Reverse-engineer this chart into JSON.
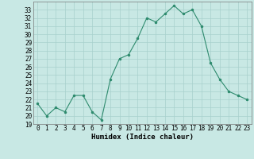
{
  "x": [
    0,
    1,
    2,
    3,
    4,
    5,
    6,
    7,
    8,
    9,
    10,
    11,
    12,
    13,
    14,
    15,
    16,
    17,
    18,
    19,
    20,
    21,
    22,
    23
  ],
  "y": [
    21.5,
    20.0,
    21.0,
    20.5,
    22.5,
    22.5,
    20.5,
    19.5,
    24.5,
    27.0,
    27.5,
    29.5,
    32.0,
    31.5,
    32.5,
    33.5,
    32.5,
    33.0,
    31.0,
    26.5,
    24.5,
    23.0,
    22.5,
    22.0
  ],
  "title": "",
  "xlabel": "Humidex (Indice chaleur)",
  "ylabel": "",
  "xlim": [
    -0.5,
    23.5
  ],
  "ylim": [
    19,
    34
  ],
  "yticks": [
    19,
    20,
    21,
    22,
    23,
    24,
    25,
    26,
    27,
    28,
    29,
    30,
    31,
    32,
    33
  ],
  "xticks": [
    0,
    1,
    2,
    3,
    4,
    5,
    6,
    7,
    8,
    9,
    10,
    11,
    12,
    13,
    14,
    15,
    16,
    17,
    18,
    19,
    20,
    21,
    22,
    23
  ],
  "line_color": "#2e8b6e",
  "marker_color": "#2e8b6e",
  "bg_color": "#c8e8e4",
  "grid_color": "#a8d0cc",
  "label_fontsize": 6.5,
  "tick_fontsize": 5.5
}
